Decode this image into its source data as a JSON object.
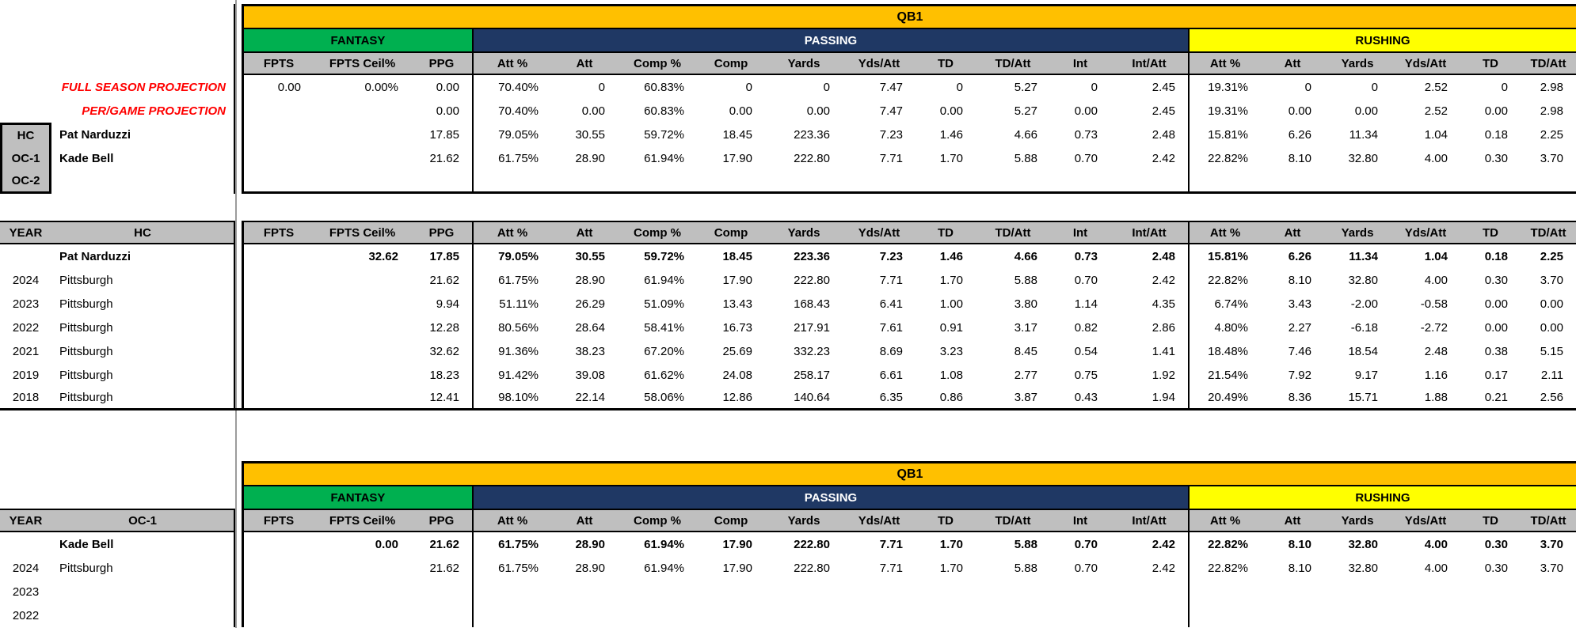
{
  "colors": {
    "qb1_header": "#FFC000",
    "fantasy_header": "#00B050",
    "passing_header": "#1F3864",
    "rushing_header": "#FFFF00",
    "column_header_gray": "#BFBFBF",
    "projection_label_red": "#FF0000"
  },
  "sections": {
    "fantasy": "FANTASY",
    "passing": "PASSING",
    "rushing": "RUSHING"
  },
  "columns": {
    "fantasy": [
      "FPTS",
      "FPTS Ceil%",
      "PPG"
    ],
    "passing": [
      "Att %",
      "Att",
      "Comp %",
      "Comp",
      "Yards",
      "Yds/Att",
      "TD",
      "TD/Att",
      "Int",
      "Int/Att"
    ],
    "rushing": [
      "Att %",
      "Att",
      "Yards",
      "Yds/Att",
      "TD",
      "TD/Att"
    ]
  },
  "top_table": {
    "title": "QB1",
    "rows": [
      {
        "type": "projection",
        "label": "FULL SEASON PROJECTION",
        "cells": [
          "0.00",
          "0.00%",
          "0.00",
          "70.40%",
          "0",
          "60.83%",
          "0",
          "0",
          "7.47",
          "0",
          "5.27",
          "0",
          "2.45",
          "19.31%",
          "0",
          "0",
          "2.52",
          "0",
          "2.98"
        ]
      },
      {
        "type": "projection",
        "label": "PER/GAME PROJECTION",
        "cells": [
          "",
          "",
          "0.00",
          "70.40%",
          "0.00",
          "60.83%",
          "0.00",
          "0.00",
          "7.47",
          "0.00",
          "5.27",
          "0.00",
          "2.45",
          "19.31%",
          "0.00",
          "0.00",
          "2.52",
          "0.00",
          "2.98"
        ]
      },
      {
        "type": "coach",
        "tag": "HC",
        "name": "Pat Narduzzi",
        "cells": [
          "",
          "",
          "17.85",
          "79.05%",
          "30.55",
          "59.72%",
          "18.45",
          "223.36",
          "7.23",
          "1.46",
          "4.66",
          "0.73",
          "2.48",
          "15.81%",
          "6.26",
          "11.34",
          "1.04",
          "0.18",
          "2.25"
        ]
      },
      {
        "type": "coach",
        "tag": "OC-1",
        "name": "Kade Bell",
        "cells": [
          "",
          "",
          "21.62",
          "61.75%",
          "28.90",
          "61.94%",
          "17.90",
          "222.80",
          "7.71",
          "1.70",
          "5.88",
          "0.70",
          "2.42",
          "22.82%",
          "8.10",
          "32.80",
          "4.00",
          "0.30",
          "3.70"
        ]
      },
      {
        "type": "coach",
        "tag": "OC-2",
        "name": "",
        "cells": [
          "",
          "",
          "",
          "",
          "",
          "",
          "",
          "",
          "",
          "",
          "",
          "",
          "",
          "",
          "",
          "",
          "",
          "",
          ""
        ]
      }
    ]
  },
  "hc_table": {
    "year_header": "YEAR",
    "coach_header": "HC",
    "rows": [
      {
        "year": "",
        "team": "Pat Narduzzi",
        "bold": true,
        "cells": [
          "",
          "32.62",
          "17.85",
          "79.05%",
          "30.55",
          "59.72%",
          "18.45",
          "223.36",
          "7.23",
          "1.46",
          "4.66",
          "0.73",
          "2.48",
          "15.81%",
          "6.26",
          "11.34",
          "1.04",
          "0.18",
          "2.25"
        ]
      },
      {
        "year": "2024",
        "team": "Pittsburgh",
        "bold": false,
        "cells": [
          "",
          "",
          "21.62",
          "61.75%",
          "28.90",
          "61.94%",
          "17.90",
          "222.80",
          "7.71",
          "1.70",
          "5.88",
          "0.70",
          "2.42",
          "22.82%",
          "8.10",
          "32.80",
          "4.00",
          "0.30",
          "3.70"
        ]
      },
      {
        "year": "2023",
        "team": "Pittsburgh",
        "bold": false,
        "cells": [
          "",
          "",
          "9.94",
          "51.11%",
          "26.29",
          "51.09%",
          "13.43",
          "168.43",
          "6.41",
          "1.00",
          "3.80",
          "1.14",
          "4.35",
          "6.74%",
          "3.43",
          "-2.00",
          "-0.58",
          "0.00",
          "0.00"
        ]
      },
      {
        "year": "2022",
        "team": "Pittsburgh",
        "bold": false,
        "cells": [
          "",
          "",
          "12.28",
          "80.56%",
          "28.64",
          "58.41%",
          "16.73",
          "217.91",
          "7.61",
          "0.91",
          "3.17",
          "0.82",
          "2.86",
          "4.80%",
          "2.27",
          "-6.18",
          "-2.72",
          "0.00",
          "0.00"
        ]
      },
      {
        "year": "2021",
        "team": "Pittsburgh",
        "bold": false,
        "cells": [
          "",
          "",
          "32.62",
          "91.36%",
          "38.23",
          "67.20%",
          "25.69",
          "332.23",
          "8.69",
          "3.23",
          "8.45",
          "0.54",
          "1.41",
          "18.48%",
          "7.46",
          "18.54",
          "2.48",
          "0.38",
          "5.15"
        ]
      },
      {
        "year": "2019",
        "team": "Pittsburgh",
        "bold": false,
        "cells": [
          "",
          "",
          "18.23",
          "91.42%",
          "39.08",
          "61.62%",
          "24.08",
          "258.17",
          "6.61",
          "1.08",
          "2.77",
          "0.75",
          "1.92",
          "21.54%",
          "7.92",
          "9.17",
          "1.16",
          "0.17",
          "2.11"
        ]
      },
      {
        "year": "2018",
        "team": "Pittsburgh",
        "bold": false,
        "cells": [
          "",
          "",
          "12.41",
          "98.10%",
          "22.14",
          "58.06%",
          "12.86",
          "140.64",
          "6.35",
          "0.86",
          "3.87",
          "0.43",
          "1.94",
          "20.49%",
          "8.36",
          "15.71",
          "1.88",
          "0.21",
          "2.56"
        ]
      }
    ]
  },
  "oc_table": {
    "title": "QB1",
    "year_header": "YEAR",
    "coach_header": "OC-1",
    "rows": [
      {
        "year": "",
        "team": "Kade Bell",
        "bold": true,
        "cells": [
          "",
          "0.00",
          "21.62",
          "61.75%",
          "28.90",
          "61.94%",
          "17.90",
          "222.80",
          "7.71",
          "1.70",
          "5.88",
          "0.70",
          "2.42",
          "22.82%",
          "8.10",
          "32.80",
          "4.00",
          "0.30",
          "3.70"
        ]
      },
      {
        "year": "2024",
        "team": "Pittsburgh",
        "bold": false,
        "cells": [
          "",
          "",
          "21.62",
          "61.75%",
          "28.90",
          "61.94%",
          "17.90",
          "222.80",
          "7.71",
          "1.70",
          "5.88",
          "0.70",
          "2.42",
          "22.82%",
          "8.10",
          "32.80",
          "4.00",
          "0.30",
          "3.70"
        ]
      },
      {
        "year": "2023",
        "team": "",
        "bold": false,
        "cells": [
          "",
          "",
          "",
          "",
          "",
          "",
          "",
          "",
          "",
          "",
          "",
          "",
          "",
          "",
          "",
          "",
          "",
          "",
          ""
        ]
      },
      {
        "year": "2022",
        "team": "",
        "bold": false,
        "cells": [
          "",
          "",
          "",
          "",
          "",
          "",
          "",
          "",
          "",
          "",
          "",
          "",
          "",
          "",
          "",
          "",
          "",
          "",
          ""
        ]
      }
    ]
  }
}
